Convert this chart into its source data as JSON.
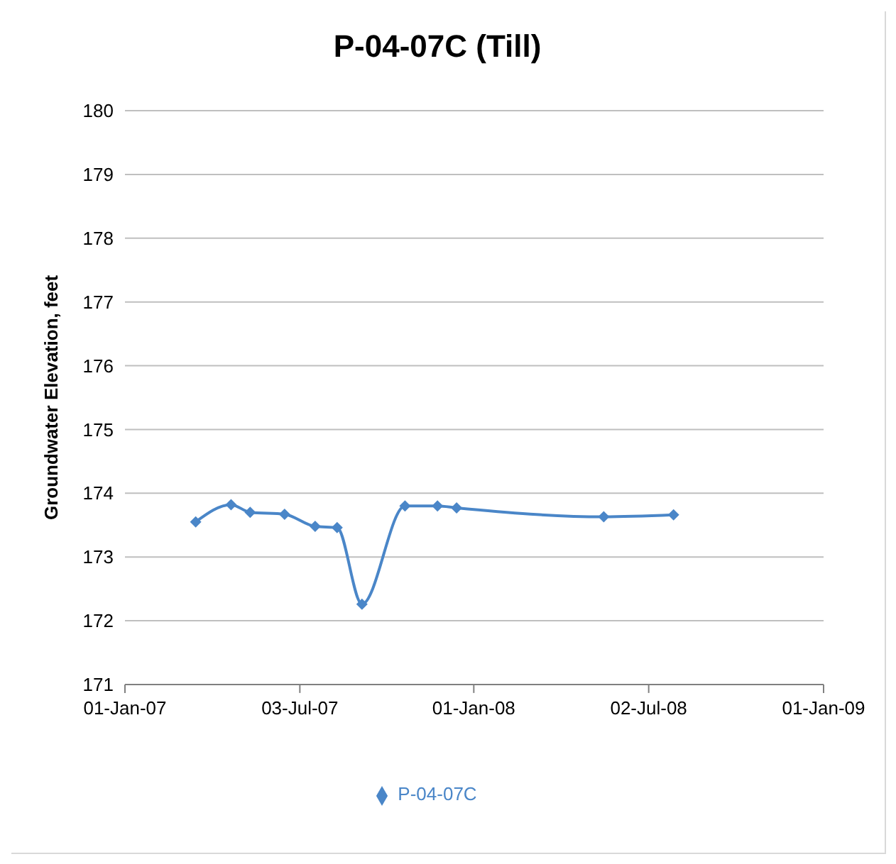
{
  "chart_data": {
    "type": "line",
    "title": "P-04-07C (Till)",
    "ylabel": "Groundwater Elevation, feet",
    "x": [
      "2007-03-16",
      "2007-04-22",
      "2007-05-12",
      "2007-06-17",
      "2007-07-19",
      "2007-08-11",
      "2007-09-06",
      "2007-10-21",
      "2007-11-24",
      "2007-12-14",
      "2008-05-16",
      "2008-07-28"
    ],
    "series": [
      {
        "name": "P-04-07C",
        "color": "#4a86c8",
        "values": [
          173.55,
          173.82,
          173.7,
          173.67,
          173.48,
          173.46,
          172.26,
          173.8,
          173.8,
          173.77,
          173.63,
          173.66
        ]
      }
    ],
    "xlim": [
      "2007-01-01",
      "2009-01-01"
    ],
    "xticks": [
      {
        "value": "2007-01-01",
        "label": "01-Jan-07"
      },
      {
        "value": "2007-07-03",
        "label": "03-Jul-07"
      },
      {
        "value": "2008-01-01",
        "label": "01-Jan-08"
      },
      {
        "value": "2008-07-02",
        "label": "02-Jul-08"
      },
      {
        "value": "2009-01-01",
        "label": "01-Jan-09"
      }
    ],
    "ylim": [
      171,
      180
    ],
    "yticks": [
      171,
      172,
      173,
      174,
      175,
      176,
      177,
      178,
      179,
      180
    ],
    "grid": "y",
    "legend": "bottom",
    "marker": "diamond",
    "line_style": "solid"
  }
}
